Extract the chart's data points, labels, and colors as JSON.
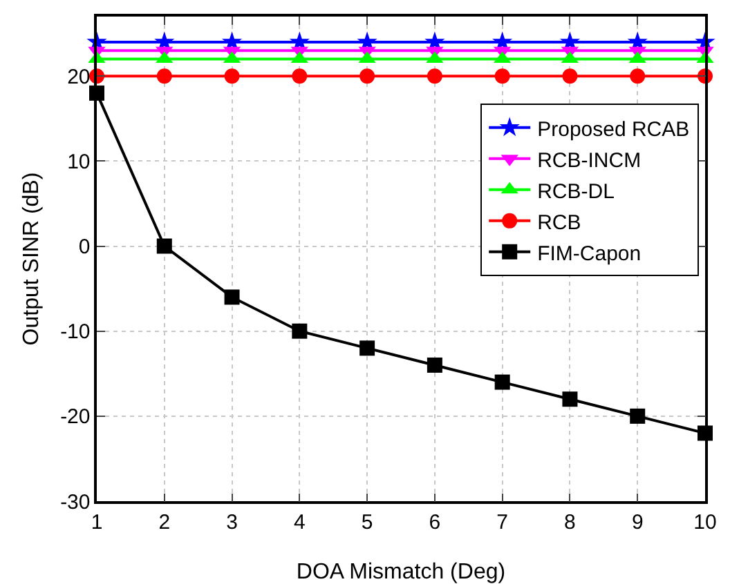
{
  "chart_data": {
    "type": "line",
    "xlabel": "DOA Mismatch (Deg)",
    "ylabel": "Output SINR (dB)",
    "x": [
      1,
      2,
      3,
      4,
      5,
      6,
      7,
      8,
      9,
      10
    ],
    "xlim": [
      1,
      10
    ],
    "xticks": [
      1,
      2,
      3,
      4,
      5,
      6,
      7,
      8,
      9,
      10
    ],
    "ylim": [
      -30,
      27
    ],
    "yticks": [
      -30,
      -20,
      -10,
      0,
      10,
      20
    ],
    "grid": true,
    "legend": "top right",
    "series": [
      {
        "name": "Proposed RCAB",
        "color": "#0000ff",
        "marker": "star",
        "values": [
          24,
          24,
          24,
          24,
          24,
          24,
          24,
          24,
          24,
          24
        ]
      },
      {
        "name": "RCB-INCM",
        "color": "#ff00ff",
        "marker": "triangle-down",
        "values": [
          23,
          23,
          23,
          23,
          23,
          23,
          23,
          23,
          23,
          23
        ]
      },
      {
        "name": "RCB-DL",
        "color": "#00ff00",
        "marker": "triangle",
        "values": [
          22,
          22,
          22,
          22,
          22,
          22,
          22,
          22,
          22,
          22
        ]
      },
      {
        "name": "RCB",
        "color": "#ff0000",
        "marker": "circle",
        "values": [
          20,
          20,
          20,
          20,
          20,
          20,
          20,
          20,
          20,
          20
        ]
      },
      {
        "name": "FIM-Capon",
        "color": "#000000",
        "marker": "square",
        "values": [
          18,
          0,
          -6,
          -10,
          -12,
          -14,
          -16,
          -18,
          -20,
          -22
        ]
      }
    ]
  }
}
